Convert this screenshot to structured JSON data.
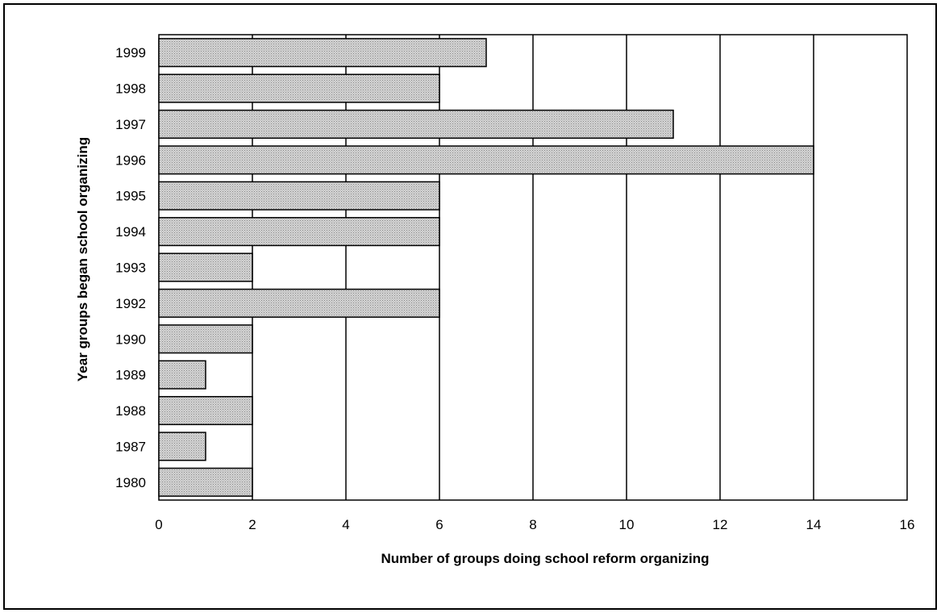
{
  "chart_data": {
    "type": "bar",
    "orientation": "horizontal",
    "categories": [
      "1999",
      "1998",
      "1997",
      "1996",
      "1995",
      "1994",
      "1993",
      "1992",
      "1990",
      "1989",
      "1988",
      "1987",
      "1980"
    ],
    "values": [
      7,
      6,
      11,
      14,
      6,
      6,
      2,
      6,
      2,
      1,
      2,
      1,
      2
    ],
    "title": "",
    "xlabel": "Number of groups doing school reform organizing",
    "ylabel": "Year groups began school organizing",
    "xlim": [
      0,
      16
    ],
    "xticks": [
      0,
      2,
      4,
      6,
      8,
      10,
      12,
      14,
      16
    ],
    "grid": "vertical",
    "legend": "none",
    "colors": {
      "bar_fill": "#c8c8c8",
      "bar_stroke": "#000000",
      "plot_bg": "#ffffff",
      "grid": "#000000"
    }
  }
}
